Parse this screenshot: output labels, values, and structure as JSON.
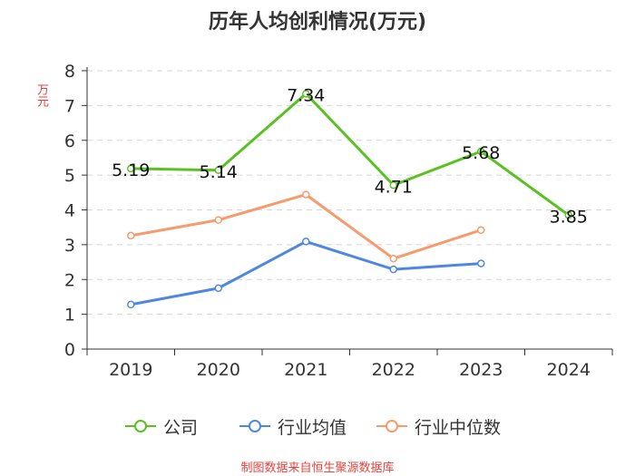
{
  "chart_data": {
    "type": "line",
    "title": "历年人均创利情况(万元)",
    "ylabel": "万元",
    "xlabel": "",
    "categories": [
      "2019",
      "2020",
      "2021",
      "2022",
      "2023",
      "2024"
    ],
    "ylim": [
      0,
      8
    ],
    "yticks": [
      0,
      1,
      2,
      3,
      4,
      5,
      6,
      7,
      8
    ],
    "grid": true,
    "legend_position": "bottom",
    "series": [
      {
        "name": "公司",
        "color": "#5ac122",
        "values": [
          5.19,
          5.14,
          7.34,
          4.71,
          5.68,
          3.85
        ],
        "labels": [
          "5.19",
          "5.14",
          "7.34",
          "4.71",
          "5.68",
          "3.85"
        ]
      },
      {
        "name": "行业均值",
        "color": "#4f87e0",
        "values": [
          1.28,
          1.75,
          3.09,
          2.29,
          2.46,
          null
        ]
      },
      {
        "name": "行业中位数",
        "color": "#f79a6c",
        "values": [
          3.26,
          3.71,
          4.44,
          2.6,
          3.42,
          null
        ]
      }
    ]
  },
  "source": "制图数据来自恒生聚源数据库"
}
